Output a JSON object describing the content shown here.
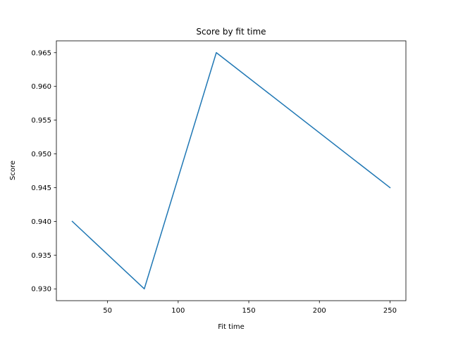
{
  "chart_data": {
    "type": "line",
    "title": "Score by fit time",
    "xlabel": "Fit time",
    "ylabel": "Score",
    "x": [
      25,
      76,
      127,
      250
    ],
    "series": [
      {
        "values": [
          0.94,
          0.93,
          0.965,
          0.945
        ],
        "color": "#1f77b4"
      }
    ],
    "xlim": [
      13.75,
      261.25
    ],
    "ylim": [
      0.92825,
      0.96675
    ],
    "xticks": [
      50,
      100,
      150,
      200,
      250
    ],
    "xtick_labels": [
      "50",
      "100",
      "150",
      "200",
      "250"
    ],
    "yticks": [
      0.93,
      0.935,
      0.94,
      0.945,
      0.95,
      0.955,
      0.96,
      0.965
    ],
    "ytick_labels": [
      "0.930",
      "0.935",
      "0.940",
      "0.945",
      "0.950",
      "0.955",
      "0.960",
      "0.965"
    ],
    "grid": false,
    "legend": false
  }
}
